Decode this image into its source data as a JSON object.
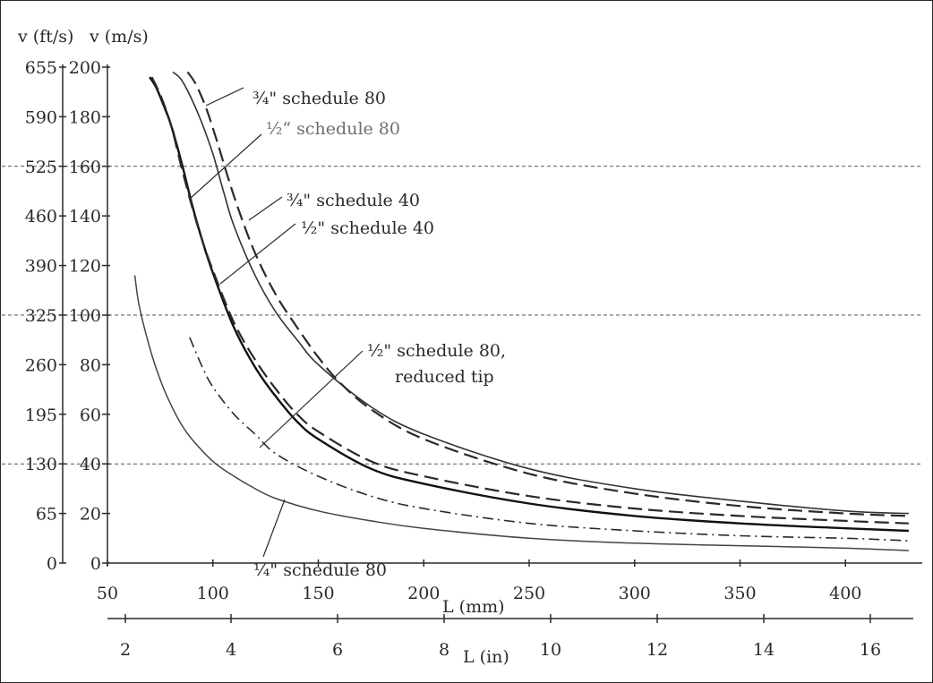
{
  "chart_data": {
    "type": "line",
    "y_left_label": "v (ft/s)",
    "y_right_label": "v (m/s)",
    "x_mm_label": "L (mm)",
    "x_in_label": "L (in)",
    "y_ms_ticks": [
      "0",
      "20",
      "40",
      "60",
      "80",
      "100",
      "120",
      "140",
      "160",
      "180",
      "200"
    ],
    "y_fts_ticks": [
      "0",
      "65",
      "130",
      "195",
      "260",
      "325",
      "390",
      "460",
      "525",
      "590",
      "655"
    ],
    "x_mm_ticks": [
      "50",
      "100",
      "150",
      "200",
      "250",
      "300",
      "350",
      "400"
    ],
    "x_in_ticks": [
      "2",
      "4",
      "6",
      "8",
      "10",
      "12",
      "14",
      "16"
    ],
    "xlim_mm": [
      50,
      430
    ],
    "ylim_ms": [
      0,
      200
    ],
    "reference_lines_ms": [
      40,
      100,
      160
    ],
    "series": [
      {
        "name": "¾\" schedule 80",
        "style": "solid",
        "color": "#333333",
        "width": 1.6,
        "x": [
          81,
          85,
          90,
          95,
          100,
          105,
          110,
          120,
          130,
          140,
          150,
          175,
          200,
          250,
          300,
          350,
          400,
          430
        ],
        "y": [
          198,
          195,
          187,
          177,
          165,
          150,
          136,
          116,
          101,
          90,
          80,
          63,
          52,
          38,
          30,
          25,
          21,
          20
        ]
      },
      {
        "name": "¾\" schedule 40",
        "style": "dashed",
        "color": "#2a2a2a",
        "width": 2.2,
        "x": [
          88,
          92,
          97,
          102,
          107,
          112,
          120,
          130,
          140,
          150,
          160,
          175,
          200,
          250,
          300,
          350,
          400,
          430
        ],
        "y": [
          198,
          193,
          183,
          170,
          156,
          143,
          125,
          108,
          95,
          83,
          73,
          62,
          50,
          36,
          28,
          23,
          20,
          19
        ]
      },
      {
        "name": "½\" schedule 40",
        "style": "solid",
        "color": "#111111",
        "width": 2.4,
        "x": [
          70,
          73,
          76,
          80,
          85,
          90,
          95,
          100,
          110,
          120,
          130,
          140,
          150,
          175,
          200,
          250,
          300,
          350,
          400,
          430
        ],
        "y": [
          196,
          192,
          186,
          177,
          162,
          145,
          130,
          117,
          95,
          79,
          67,
          57,
          50,
          38,
          32,
          24,
          19,
          16,
          14,
          13
        ]
      },
      {
        "name": "½“ schedule 80",
        "style": "dashed",
        "color": "#2a2a2a",
        "width": 2.2,
        "x": [
          71,
          75,
          80,
          85,
          90,
          95,
          100,
          110,
          120,
          130,
          140,
          150,
          175,
          200,
          250,
          300,
          350,
          400,
          430
        ],
        "y": [
          196,
          189,
          177,
          160,
          144,
          130,
          118,
          97,
          82,
          70,
          60,
          53,
          41,
          35,
          27,
          22,
          19,
          17,
          16
        ]
      },
      {
        "name": "½\" schedule 80, reduced tip",
        "style": "dashdot",
        "color": "#2a2a2a",
        "width": 1.6,
        "x": [
          89,
          95,
          100,
          110,
          120,
          130,
          150,
          175,
          200,
          250,
          300,
          350,
          400,
          430
        ],
        "y": [
          91,
          79,
          71,
          60,
          52,
          44,
          35,
          27,
          22,
          16,
          13,
          11,
          10,
          9
        ]
      },
      {
        "name": "¼\" schedule 80",
        "style": "solid",
        "color": "#444444",
        "width": 1.5,
        "x": [
          63,
          65,
          70,
          75,
          80,
          85,
          90,
          100,
          110,
          120,
          130,
          150,
          175,
          200,
          250,
          300,
          350,
          400,
          430
        ],
        "y": [
          116,
          104,
          87,
          74,
          64,
          56,
          50,
          41,
          35,
          30,
          26,
          21,
          17,
          14,
          10,
          8,
          7,
          6,
          5
        ]
      }
    ]
  },
  "annotations": {
    "a34s80": "¾\" schedule 80",
    "a12s80": "½“ schedule 80",
    "a34s40": "¾\" schedule 40",
    "a12s40": "½\" schedule 40",
    "areduced1": "½\" schedule 80,",
    "areduced2": "reduced tip",
    "a14s80": "¼\" schedule 80"
  }
}
